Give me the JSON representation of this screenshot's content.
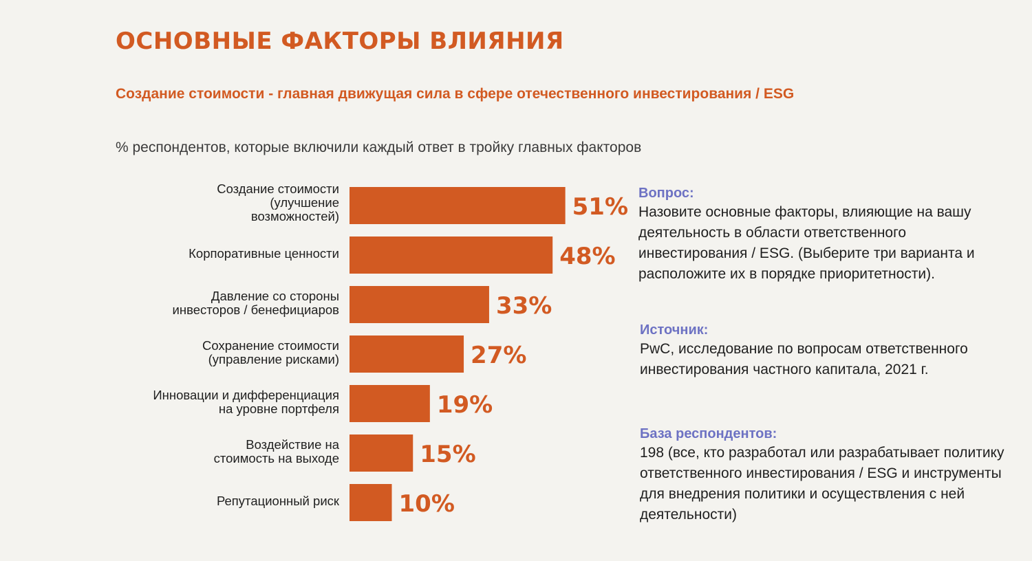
{
  "header": {
    "title": "ОСНОВНЫЕ ФАКТОРЫ ВЛИЯНИЯ",
    "subtitle": "Создание стоимости - главная движущая сила в сфере отечественного инвестирования / ESG",
    "caption": "% респондентов, которые включили каждый ответ в тройку главных факторов"
  },
  "chart_data": {
    "type": "bar",
    "orientation": "horizontal",
    "categories": [
      "Создание стоимости (улучшение возможностей)",
      "Корпоративные ценности",
      "Давление со стороны инвесторов / бенефициаров",
      "Сохранение стоимости (управление рисками)",
      "Инновации и дифференциация на уровне портфеля",
      "Воздействие на стоимость на выходе",
      "Репутационный риск"
    ],
    "category_lines": [
      [
        "Создание стоимости",
        "(улучшение",
        "возможностей)"
      ],
      [
        "Корпоративные ценности"
      ],
      [
        "Давление со стороны",
        "инвесторов / бенефициаров"
      ],
      [
        "Сохранение стоимости",
        "(управление рисками)"
      ],
      [
        "Инновации и дифференциация",
        "на уровне портфеля"
      ],
      [
        "Воздействие на",
        "стоимость на выходе"
      ],
      [
        "Репутационный риск"
      ]
    ],
    "values": [
      51,
      48,
      33,
      27,
      19,
      15,
      10
    ],
    "value_labels": [
      "51%",
      "48%",
      "33%",
      "27%",
      "19%",
      "15%",
      "10%"
    ],
    "unit": "%",
    "bar_color": "#d25a22",
    "label_color": "#d25a22"
  },
  "side_panel": {
    "question_heading": "Вопрос:",
    "question_text": "Назовите основные факторы, влияющие на вашу деятельность в области ответственного инвестирования / ESG. (Выберите три варианта и расположите их в порядке приоритетности).",
    "source_heading": "Источник:",
    "source_text": "PwC, исследование по вопросам ответственного инвестирования частного капитала, 2021 г.",
    "base_heading": "База респондентов:",
    "base_text": "198 (все, кто разработал или разрабатывает политику ответственного инвестирования / ESG и инструменты для внедрения политики и осуществления с ней деятельности)",
    "heading_color": "#6d72c3"
  }
}
